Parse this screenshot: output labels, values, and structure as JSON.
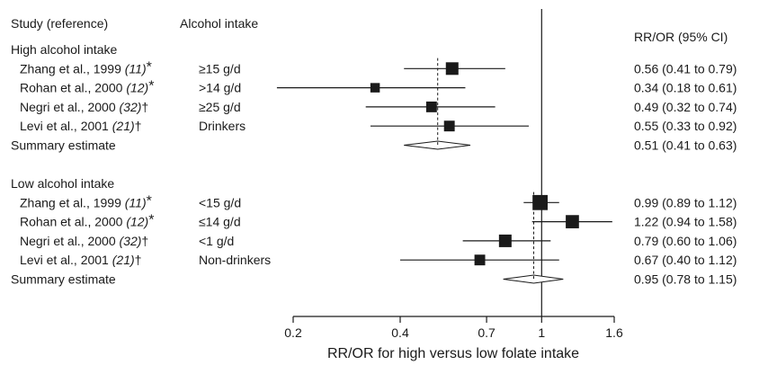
{
  "chart_data": {
    "type": "forest",
    "headers": {
      "study": "Study (reference)",
      "intake": "Alcohol intake",
      "estimate": "RR/OR (95% CI)"
    },
    "xlabel": "RR/OR for high versus low folate intake",
    "xscale": "log",
    "xlim": [
      0.2,
      1.6
    ],
    "xticks": [
      0.2,
      0.4,
      0.7,
      1,
      1.6
    ],
    "reference_line": 1,
    "groups": [
      {
        "label": "High alcohol intake",
        "studies": [
          {
            "author": "Zhang et al., 1999 ",
            "ref": "(11)",
            "mark": "*",
            "intake": "≥15 g/d",
            "est": 0.56,
            "lo": 0.41,
            "hi": 0.79,
            "ci_text": "0.56 (0.41 to 0.79)",
            "weight": 1.0
          },
          {
            "author": "Rohan et al., 2000 ",
            "ref": "(12)",
            "mark": "*",
            "intake": ">14 g/d",
            "est": 0.34,
            "lo": 0.18,
            "hi": 0.61,
            "ci_text": "0.34 (0.18 to 0.61)",
            "weight": 0.75
          },
          {
            "author": "Negri et al., 2000 ",
            "ref": "(32)",
            "mark": "†",
            "intake": "≥25 g/d",
            "est": 0.49,
            "lo": 0.32,
            "hi": 0.74,
            "ci_text": "0.49 (0.32 to 0.74)",
            "weight": 0.85
          },
          {
            "author": "Levi et al., 2001 ",
            "ref": "(21)",
            "mark": "†",
            "intake": "Drinkers",
            "est": 0.55,
            "lo": 0.33,
            "hi": 0.92,
            "ci_text": "0.55 (0.33 to 0.92)",
            "weight": 0.85
          }
        ],
        "summary": {
          "label": "Summary estimate",
          "est": 0.51,
          "lo": 0.41,
          "hi": 0.63,
          "ci_text": "0.51 (0.41 to 0.63)"
        }
      },
      {
        "label": "Low alcohol intake",
        "studies": [
          {
            "author": "Zhang et al., 1999 ",
            "ref": "(11)",
            "mark": "*",
            "intake": "<15 g/d",
            "est": 0.99,
            "lo": 0.89,
            "hi": 1.12,
            "ci_text": "0.99 (0.89 to 1.12)",
            "weight": 1.2
          },
          {
            "author": "Rohan et al., 2000 ",
            "ref": "(12)",
            "mark": "*",
            "intake": "≤14 g/d",
            "est": 1.22,
            "lo": 0.94,
            "hi": 1.58,
            "ci_text": "1.22 (0.94 to 1.58)",
            "weight": 1.05
          },
          {
            "author": "Negri et al., 2000 ",
            "ref": "(32)",
            "mark": "†",
            "intake": "<1 g/d",
            "est": 0.79,
            "lo": 0.6,
            "hi": 1.06,
            "ci_text": "0.79 (0.60 to 1.06)",
            "weight": 1.0
          },
          {
            "author": "Levi et al., 2001 ",
            "ref": "(21)",
            "mark": "†",
            "intake": "Non-drinkers",
            "est": 0.67,
            "lo": 0.4,
            "hi": 1.12,
            "ci_text": "0.67 (0.40 to 1.12)",
            "weight": 0.85
          }
        ],
        "summary": {
          "label": "Summary estimate",
          "est": 0.95,
          "lo": 0.78,
          "hi": 1.15,
          "ci_text": "0.95 (0.78 to 1.15)"
        }
      }
    ],
    "colors": {
      "ink": "#1a1a1a",
      "background": "#ffffff"
    }
  }
}
